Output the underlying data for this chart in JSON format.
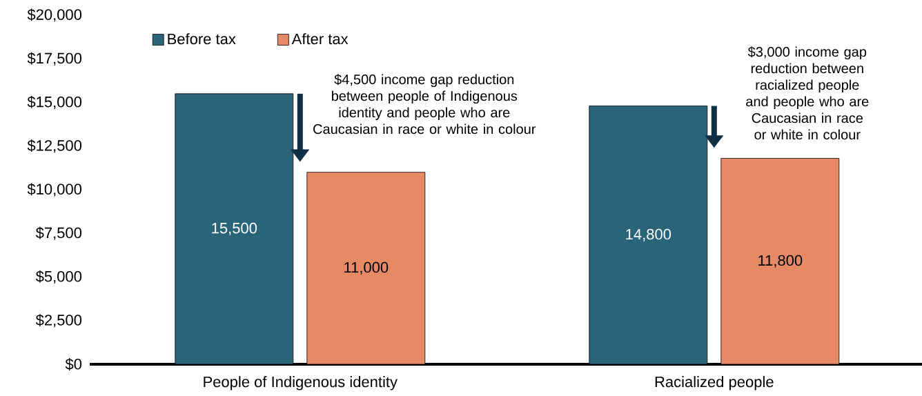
{
  "chart_data": {
    "type": "bar",
    "categories": [
      "People of Indigenous identity",
      "Racialized people"
    ],
    "series": [
      {
        "name": "Before tax",
        "color": "#2a6478",
        "values": [
          15500,
          14800
        ],
        "value_labels": [
          "15,500",
          "14,800"
        ]
      },
      {
        "name": "After tax",
        "color": "#e58a65",
        "values": [
          11000,
          11800
        ],
        "value_labels": [
          "11,000",
          "11,800"
        ]
      }
    ],
    "ylim": [
      0,
      20000
    ],
    "yticks": [
      {
        "value": 0,
        "label": "$0"
      },
      {
        "value": 2500,
        "label": "$2,500"
      },
      {
        "value": 5000,
        "label": "$5,000"
      },
      {
        "value": 7500,
        "label": "$7,500"
      },
      {
        "value": 10000,
        "label": "$10,000"
      },
      {
        "value": 12500,
        "label": "$12,500"
      },
      {
        "value": 15000,
        "label": "$15,000"
      },
      {
        "value": 17500,
        "label": "$17,500"
      },
      {
        "value": 20000,
        "label": "$20,000"
      }
    ],
    "legend": "top left",
    "annotations": [
      "$4,500 income gap reduction between people of Indigenous identity and people who are Caucasian in race or white in colour",
      "$3,000 income gap reduction between racialized people and people who are Caucasian in race or white in colour"
    ]
  }
}
